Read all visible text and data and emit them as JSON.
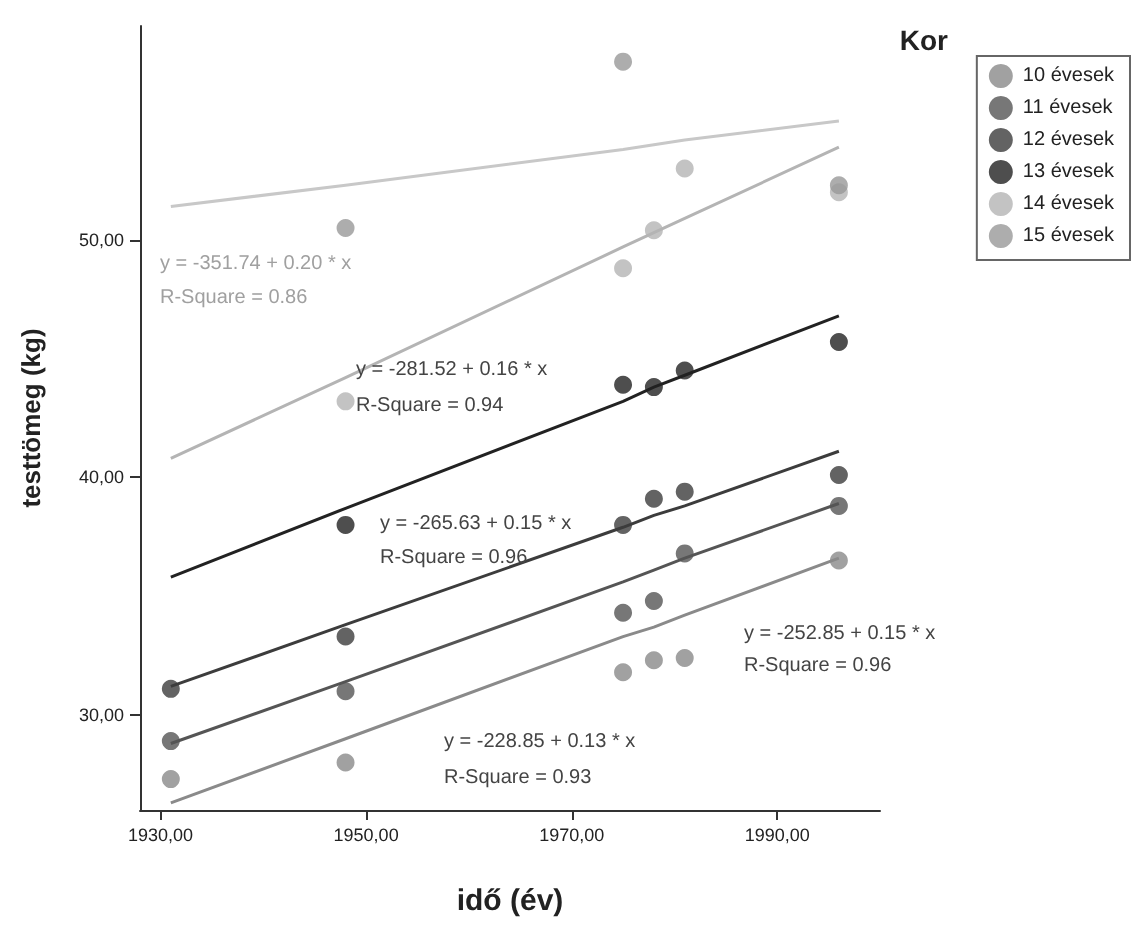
{
  "chart_data": {
    "type": "scatter",
    "xlabel": "idő (év)",
    "ylabel": "testtömeg (kg)",
    "legend_title": "Kor",
    "legend": "top right",
    "grid": false,
    "marker": "circle",
    "x": [
      1931,
      1948,
      1975,
      1978,
      1981,
      1996
    ],
    "xlim": [
      1928,
      2000
    ],
    "xticks": [
      {
        "value": 1930,
        "label": "1930,00"
      },
      {
        "value": 1950,
        "label": "1950,00"
      },
      {
        "value": 1970,
        "label": "1970,00"
      },
      {
        "value": 1990,
        "label": "1990,00"
      }
    ],
    "ylim": [
      26,
      59
    ],
    "yticks": [
      {
        "value": 30,
        "label": "30,00"
      },
      {
        "value": 40,
        "label": "40,00"
      },
      {
        "value": 50,
        "label": "50,00"
      }
    ],
    "series": [
      {
        "name": "10 évesek",
        "color": "#8a8a8a",
        "values": [
          27.3,
          28.0,
          31.8,
          32.3,
          32.4,
          36.5
        ]
      },
      {
        "name": "11 évesek",
        "color": "#555555",
        "values": [
          28.9,
          31.0,
          34.3,
          34.8,
          36.8,
          38.8
        ]
      },
      {
        "name": "12 évesek",
        "color": "#3c3c3c",
        "values": [
          31.1,
          33.3,
          38.0,
          39.1,
          39.4,
          40.1
        ]
      },
      {
        "name": "13 évesek",
        "color": "#222222",
        "values": [
          null,
          38.0,
          43.9,
          43.8,
          44.5,
          45.7
        ]
      },
      {
        "name": "14 évesek",
        "color": "#b4b4b4",
        "values": [
          null,
          43.2,
          48.8,
          50.4,
          53.0,
          52.0
        ]
      },
      {
        "name": "15 évesek",
        "color": "#999999",
        "values": [
          null,
          50.5,
          57.5,
          null,
          null,
          52.3
        ]
      },
      {
        "type": "line",
        "marker": "none",
        "color": "#8a8a8a",
        "values": [
          26.3,
          29.0,
          33.3,
          33.7,
          34.2,
          36.6
        ]
      },
      {
        "type": "line",
        "marker": "none",
        "color": "#555555",
        "values": [
          28.8,
          31.4,
          35.6,
          36.1,
          36.6,
          38.9
        ]
      },
      {
        "type": "line",
        "marker": "none",
        "color": "#3c3c3c",
        "values": [
          31.2,
          33.8,
          37.9,
          38.4,
          38.8,
          41.1
        ]
      },
      {
        "type": "line",
        "marker": "none",
        "color": "#222222",
        "values": [
          35.8,
          38.7,
          43.2,
          43.8,
          44.3,
          46.8
        ]
      },
      {
        "type": "line",
        "marker": "none",
        "color": "#b4b4b4",
        "values": [
          40.8,
          44.2,
          49.7,
          50.3,
          50.9,
          53.9
        ]
      },
      {
        "type": "line",
        "marker": "none",
        "color": "#c8c8c8",
        "values": [
          51.4,
          52.3,
          53.8,
          54.0,
          54.2,
          55.0
        ]
      }
    ],
    "annotations": [
      "y = -351.74 + 0.20 * x",
      "R-Square = 0.86",
      "y = -281.52 + 0.16 * x",
      "R-Square = 0.94",
      "y = -265.63 + 0.15 * x",
      "R-Square = 0.96",
      "y = -252.85 + 0.15 * x",
      "R-Square = 0.96",
      "y = -228.85 + 0.13 * x",
      "R-Square = 0.93"
    ]
  }
}
